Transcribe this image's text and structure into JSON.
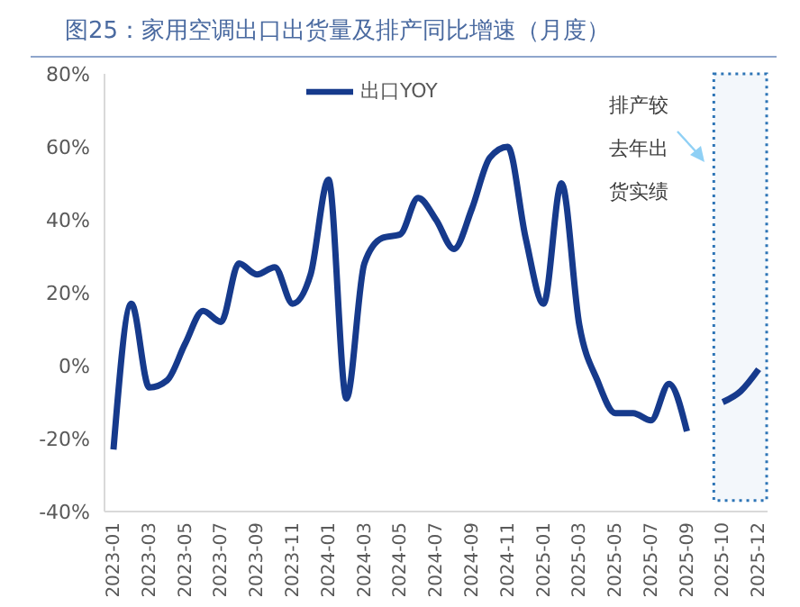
{
  "chart_data": {
    "type": "line",
    "title": "图25：家用空调出口出货量及排产同比增速（月度）",
    "categories": [
      "2023-01",
      null,
      "2023-03",
      null,
      "2023-05",
      null,
      "2023-07",
      null,
      "2023-09",
      null,
      "2023-11",
      null,
      "2024-01",
      null,
      "2024-03",
      null,
      "2024-05",
      null,
      "2024-07",
      null,
      "2024-09",
      null,
      "2024-11",
      null,
      "2025-01",
      null,
      "2025-03",
      null,
      "2025-05",
      null,
      "2025-07",
      null,
      "2025-09",
      null,
      "2025-10",
      null,
      "2025-12"
    ],
    "series": [
      {
        "name": "出口YOY",
        "color": "#163a8c",
        "values": [
          -23,
          17,
          -6,
          -4,
          6,
          15,
          12,
          28,
          25,
          27,
          17,
          25,
          51,
          -9,
          28,
          35,
          36,
          46,
          40,
          32,
          43,
          57,
          60,
          35,
          17,
          50,
          11,
          -4,
          -13,
          -13,
          -15,
          -5,
          -18,
          null,
          -10,
          -7,
          -1
        ]
      }
    ],
    "ylim": [
      -40,
      80
    ],
    "yticks": [
      {
        "value": -40,
        "label": "-40%"
      },
      {
        "value": -20,
        "label": "-20%"
      },
      {
        "value": 0,
        "label": "0%"
      },
      {
        "value": 20,
        "label": "20%"
      },
      {
        "value": 40,
        "label": "40%"
      },
      {
        "value": 60,
        "label": "60%"
      },
      {
        "value": 80,
        "label": "80%"
      }
    ],
    "bands": [
      {
        "axis": "x",
        "from": "2025-10",
        "to": "2025-12",
        "label": "排产较去年出货实绩",
        "color": "#2e75b6"
      }
    ],
    "grid": false,
    "legend": "top",
    "marker": "none",
    "line_style": "solid"
  }
}
